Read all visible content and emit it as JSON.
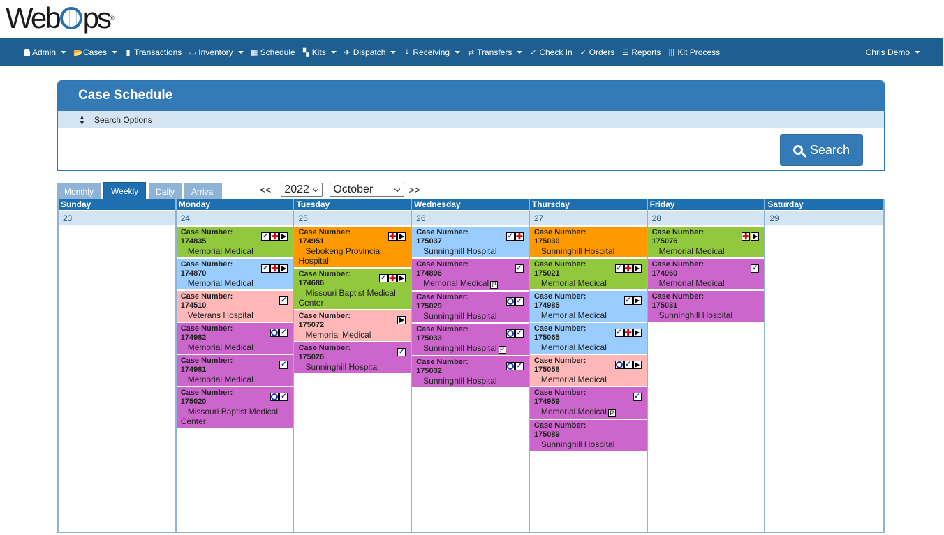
{
  "brand": {
    "logo_text_a": "Web",
    "logo_text_b": "ps",
    "logo_tm": "®"
  },
  "nav": {
    "items": [
      {
        "label": "Admin",
        "icon": "user-icon",
        "dropdown": true
      },
      {
        "label": "Cases",
        "icon": "folder-open-icon",
        "dropdown": true
      },
      {
        "label": "Transactions",
        "icon": "bar-chart-icon",
        "dropdown": false
      },
      {
        "label": "Inventory",
        "icon": "box-icon",
        "dropdown": true
      },
      {
        "label": "Schedule",
        "icon": "calendar-icon",
        "dropdown": false
      },
      {
        "label": "Kits",
        "icon": "grid-icon",
        "dropdown": true
      },
      {
        "label": "Dispatch",
        "icon": "plane-icon",
        "dropdown": true
      },
      {
        "label": "Receiving",
        "icon": "download-icon",
        "dropdown": true
      },
      {
        "label": "Transfers",
        "icon": "transfer-arrows-icon",
        "dropdown": true
      },
      {
        "label": "Check In",
        "icon": "check-in-icon",
        "dropdown": false
      },
      {
        "label": "Orders",
        "icon": "check-icon",
        "dropdown": false
      },
      {
        "label": "Reports",
        "icon": "list-icon",
        "dropdown": false
      },
      {
        "label": "Kit Process",
        "icon": "barcode-icon",
        "dropdown": false
      }
    ],
    "user": "Chris Demo"
  },
  "panel": {
    "title": "Case Schedule",
    "search_options_label": "Search Options",
    "search_button": "Search"
  },
  "view_tabs": [
    {
      "label": "Monthly",
      "active": false
    },
    {
      "label": "Weekly",
      "active": true
    },
    {
      "label": "Daily",
      "active": false
    },
    {
      "label": "Arrival",
      "active": false
    }
  ],
  "period": {
    "prev": "<<",
    "next": ">>",
    "year": "2022",
    "month": "October"
  },
  "colors": {
    "green": "#92c83e",
    "blue": "#99ccff",
    "orange": "#ff9900",
    "pink": "#ffb7b7",
    "purple": "#cc66cc",
    "header": "#1e6fb0",
    "nav": "#1e5f8f"
  },
  "calendar": {
    "days": [
      {
        "name": "Sunday",
        "date": "23",
        "events": []
      },
      {
        "name": "Monday",
        "date": "24",
        "events": [
          {
            "label": "Case Number:",
            "number": "174835",
            "facility": "Memorial Medical",
            "color": "green",
            "badges": [
              "check",
              "cross",
              "flag"
            ],
            "p": false
          },
          {
            "label": "Case Number:",
            "number": "174870",
            "facility": "Memorial Medical",
            "color": "blue",
            "badges": [
              "check",
              "cross",
              "flag"
            ],
            "p": false
          },
          {
            "label": "Case Number:",
            "number": "174510",
            "facility": "Veterans Hospital",
            "color": "pink",
            "badges": [
              "check"
            ],
            "p": false
          },
          {
            "label": "Case Number:",
            "number": "174982",
            "facility": "Memorial Medical",
            "color": "purple",
            "badges": [
              "circle",
              "check"
            ],
            "p": false
          },
          {
            "label": "Case Number:",
            "number": "174981",
            "facility": "Memorial Medical",
            "color": "purple",
            "badges": [
              "check"
            ],
            "p": false
          },
          {
            "label": "Case Number:",
            "number": "175020",
            "facility": "Missouri Baptist Medical Center",
            "color": "purple",
            "badges": [
              "circle",
              "check"
            ],
            "p": false
          }
        ]
      },
      {
        "name": "Tuesday",
        "date": "25",
        "events": [
          {
            "label": "Case Number:",
            "number": "174951",
            "facility": "Sebokeng Provincial Hospital",
            "color": "orange",
            "badges": [
              "cross",
              "flag"
            ],
            "p": false
          },
          {
            "label": "Case Number:",
            "number": "174686",
            "facility": "Missouri Baptist Medical Center",
            "color": "green",
            "badges": [
              "check",
              "cross",
              "flag"
            ],
            "p": false
          },
          {
            "label": "Case Number:",
            "number": "175072",
            "facility": "Memorial Medical",
            "color": "pink",
            "badges": [
              "flag"
            ],
            "p": false
          },
          {
            "label": "Case Number:",
            "number": "175026",
            "facility": "Sunninghill Hospital",
            "color": "purple",
            "badges": [
              "check"
            ],
            "p": false
          }
        ]
      },
      {
        "name": "Wednesday",
        "date": "26",
        "events": [
          {
            "label": "Case Number:",
            "number": "175037",
            "facility": "Sunninghill Hospital",
            "color": "blue",
            "badges": [
              "check",
              "cross"
            ],
            "p": false
          },
          {
            "label": "Case Number:",
            "number": "174896",
            "facility": "Memorial Medical",
            "color": "purple",
            "badges": [
              "check"
            ],
            "p": true
          },
          {
            "label": "Case Number:",
            "number": "175029",
            "facility": "Sunninghill Hospital",
            "color": "purple",
            "badges": [
              "circle",
              "check"
            ],
            "p": false
          },
          {
            "label": "Case Number:",
            "number": "175033",
            "facility": "Sunninghill Hospital",
            "color": "purple",
            "badges": [
              "circle",
              "check"
            ],
            "p": true
          },
          {
            "label": "Case Number:",
            "number": "175032",
            "facility": "Sunninghill Hospital",
            "color": "purple",
            "badges": [
              "circle",
              "check"
            ],
            "p": false
          }
        ]
      },
      {
        "name": "Thursday",
        "date": "27",
        "events": [
          {
            "label": "Case Number:",
            "number": "175030",
            "facility": "Sunninghill Hospital",
            "color": "orange",
            "badges": [],
            "p": false
          },
          {
            "label": "Case Number:",
            "number": "175021",
            "facility": "Memorial Medical",
            "color": "green",
            "badges": [
              "check",
              "cross",
              "flag"
            ],
            "p": false
          },
          {
            "label": "Case Number:",
            "number": "174985",
            "facility": "Memorial Medical",
            "color": "blue",
            "badges": [
              "check",
              "flag"
            ],
            "p": false
          },
          {
            "label": "Case Number:",
            "number": "175065",
            "facility": "Memorial Medical",
            "color": "blue",
            "badges": [
              "check",
              "cross",
              "flag"
            ],
            "p": false
          },
          {
            "label": "Case Number:",
            "number": "175058",
            "facility": "Memorial Medical",
            "color": "pink",
            "badges": [
              "circle",
              "check",
              "flag"
            ],
            "p": false
          },
          {
            "label": "Case Number:",
            "number": "174959",
            "facility": "Memorial Medical",
            "color": "purple",
            "badges": [
              "check"
            ],
            "p": true
          },
          {
            "label": "Case Number:",
            "number": "175089",
            "facility": "Sunninghill Hospital",
            "color": "purple",
            "badges": [],
            "p": false
          }
        ]
      },
      {
        "name": "Friday",
        "date": "28",
        "events": [
          {
            "label": "Case Number:",
            "number": "175076",
            "facility": "Memorial Medical",
            "color": "green",
            "badges": [
              "cross",
              "flag"
            ],
            "p": false
          },
          {
            "label": "Case Number:",
            "number": "174960",
            "facility": "Memorial Medical",
            "color": "purple",
            "badges": [
              "check"
            ],
            "p": false
          },
          {
            "label": "Case Number:",
            "number": "175031",
            "facility": "Sunninghill Hospital",
            "color": "purple",
            "badges": [],
            "p": false
          }
        ]
      },
      {
        "name": "Saturday",
        "date": "29",
        "events": []
      }
    ]
  }
}
